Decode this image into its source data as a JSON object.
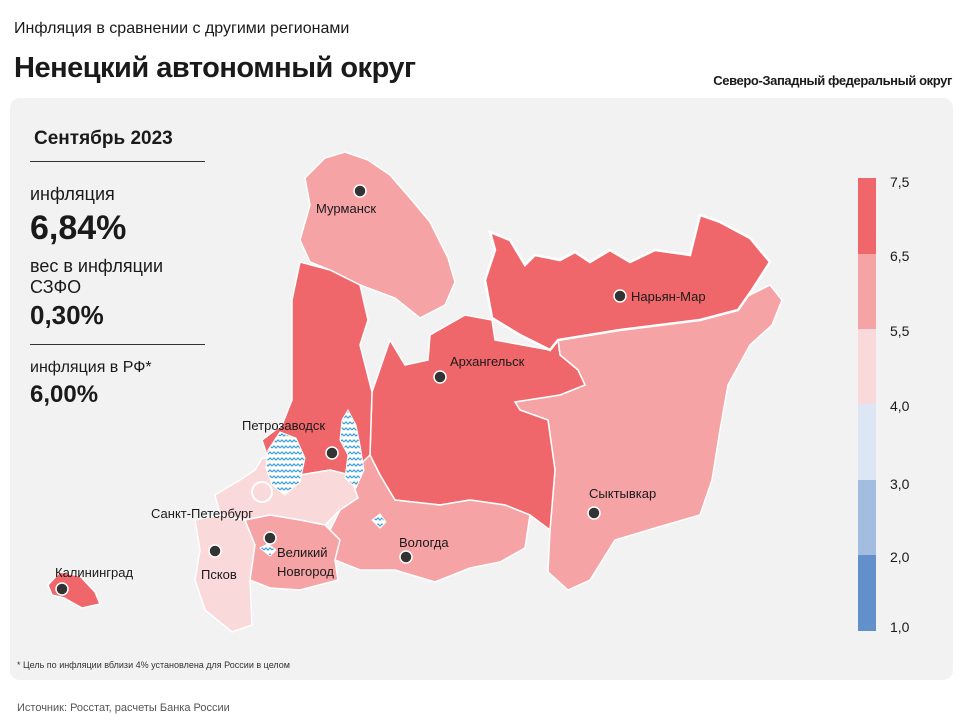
{
  "header": {
    "subtitle": "Инфляция в сравнении с другими регионами",
    "title": "Ненецкий автономный округ",
    "district": "Северо-Западный федеральный округ"
  },
  "info": {
    "period": "Сентябрь 2023",
    "inflation_label": "инфляция",
    "inflation_value": "6,84%",
    "weight_label": "вес в инфляции  СЗФО",
    "weight_value": "0,30%",
    "rf_label": "инфляция  в РФ*",
    "rf_value": "6,00%"
  },
  "cities": {
    "murmansk": "Мурманск",
    "naryan_mar": "Нарьян-Мар",
    "arkhangelsk": "Архангельск",
    "petrozavodsk": "Петрозаводск",
    "spb": "Санкт-Петербург",
    "syktyvkar": "Сыктывкар",
    "kaliningrad": "Калининград",
    "pskov": "Псков",
    "novgorod_1": "Великий",
    "novgorod_2": "Новгород",
    "vologda": "Вологда"
  },
  "legend": {
    "ticks": [
      "7,5",
      "6,5",
      "5,5",
      "4,0",
      "3,0",
      "2,0",
      "1,0"
    ],
    "bins": [
      {
        "range": "6,5–7,5",
        "color": "#f0676b"
      },
      {
        "range": "5,5–6,5",
        "color": "#f5a3a5"
      },
      {
        "range": "4,0–5,5",
        "color": "#f9d9da"
      },
      {
        "range": "3,0–4,0",
        "color": "#dce6f4"
      },
      {
        "range": "2,0–3,0",
        "color": "#a3bde0"
      },
      {
        "range": "1,0–2,0",
        "color": "#6390ca"
      }
    ]
  },
  "footnote": "* Цель по инфляции вблизи 4% установлена для России в целом",
  "source": "Источник: Росстат, расчеты Банка России"
}
